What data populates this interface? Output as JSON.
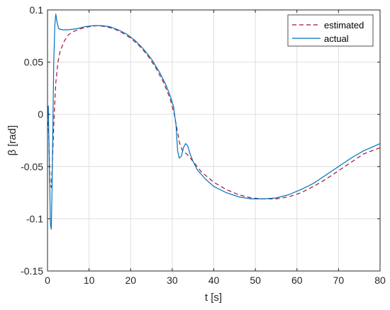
{
  "chart_data": {
    "type": "line",
    "title": "",
    "xlabel": "t [s]",
    "ylabel": "β [rad]",
    "xlim": [
      0,
      80
    ],
    "ylim": [
      -0.15,
      0.1
    ],
    "xticks": [
      0,
      10,
      20,
      30,
      40,
      50,
      60,
      70,
      80
    ],
    "xtick_labels": [
      "0",
      "10",
      "20",
      "30",
      "40",
      "50",
      "60",
      "70",
      "80"
    ],
    "yticks": [
      0.1,
      0.05,
      0,
      -0.05,
      -0.1,
      -0.15
    ],
    "ytick_labels": [
      "0.1",
      "0.05",
      "0",
      "-0.05",
      "-0.1",
      "-0.15"
    ],
    "grid": true,
    "legend_position": "top-right",
    "series": [
      {
        "name": "estimated",
        "color": "#A2142F",
        "style": "dashed",
        "x": [
          0,
          0.3,
          0.6,
          0.9,
          1.2,
          1.6,
          2.0,
          2.5,
          3.0,
          4.0,
          5.0,
          6.0,
          8.0,
          10.0,
          12.0,
          14.0,
          16.0,
          18.0,
          20.0,
          22.0,
          24.0,
          26.0,
          28.0,
          29.5,
          30.5,
          31.2,
          31.8,
          32.5,
          33.5,
          35.0,
          37.0,
          40.0,
          43.0,
          46.0,
          49.0,
          52.0,
          55.0,
          58.0,
          61.0,
          64.0,
          67.0,
          70.0,
          73.0,
          76.0,
          80.0
        ],
        "y": [
          0.0,
          -0.02,
          -0.065,
          -0.07,
          -0.045,
          0.0,
          0.03,
          0.05,
          0.06,
          0.07,
          0.076,
          0.079,
          0.082,
          0.084,
          0.085,
          0.084,
          0.082,
          0.078,
          0.073,
          0.066,
          0.057,
          0.045,
          0.03,
          0.015,
          0.0,
          -0.015,
          -0.028,
          -0.035,
          -0.038,
          -0.045,
          -0.055,
          -0.065,
          -0.072,
          -0.077,
          -0.08,
          -0.081,
          -0.081,
          -0.079,
          -0.075,
          -0.069,
          -0.062,
          -0.054,
          -0.046,
          -0.038,
          -0.032
        ]
      },
      {
        "name": "actual",
        "color": "#0072BD",
        "style": "solid",
        "x": [
          0,
          0.2,
          0.45,
          0.7,
          0.9,
          1.1,
          1.3,
          1.5,
          1.75,
          2.0,
          2.3,
          2.7,
          3.5,
          5.0,
          7.0,
          9.0,
          11.0,
          13.0,
          15.0,
          17.0,
          19.0,
          21.0,
          23.0,
          25.0,
          27.0,
          28.5,
          29.5,
          30.3,
          30.9,
          31.3,
          31.7,
          32.2,
          32.7,
          33.2,
          33.7,
          34.3,
          35.0,
          36.0,
          38.0,
          40.0,
          43.0,
          46.0,
          49.0,
          52.0,
          55.0,
          58.0,
          61.0,
          64.0,
          67.0,
          70.0,
          73.0,
          76.0,
          80.0
        ],
        "y": [
          0.0,
          0.008,
          -0.05,
          -0.105,
          -0.11,
          -0.07,
          -0.01,
          0.05,
          0.085,
          0.096,
          0.088,
          0.082,
          0.081,
          0.081,
          0.082,
          0.084,
          0.085,
          0.085,
          0.084,
          0.081,
          0.077,
          0.071,
          0.063,
          0.053,
          0.04,
          0.028,
          0.018,
          0.008,
          -0.01,
          -0.035,
          -0.042,
          -0.04,
          -0.032,
          -0.028,
          -0.03,
          -0.038,
          -0.045,
          -0.053,
          -0.062,
          -0.069,
          -0.075,
          -0.079,
          -0.081,
          -0.081,
          -0.08,
          -0.077,
          -0.072,
          -0.066,
          -0.058,
          -0.05,
          -0.042,
          -0.035,
          -0.028
        ]
      }
    ]
  }
}
